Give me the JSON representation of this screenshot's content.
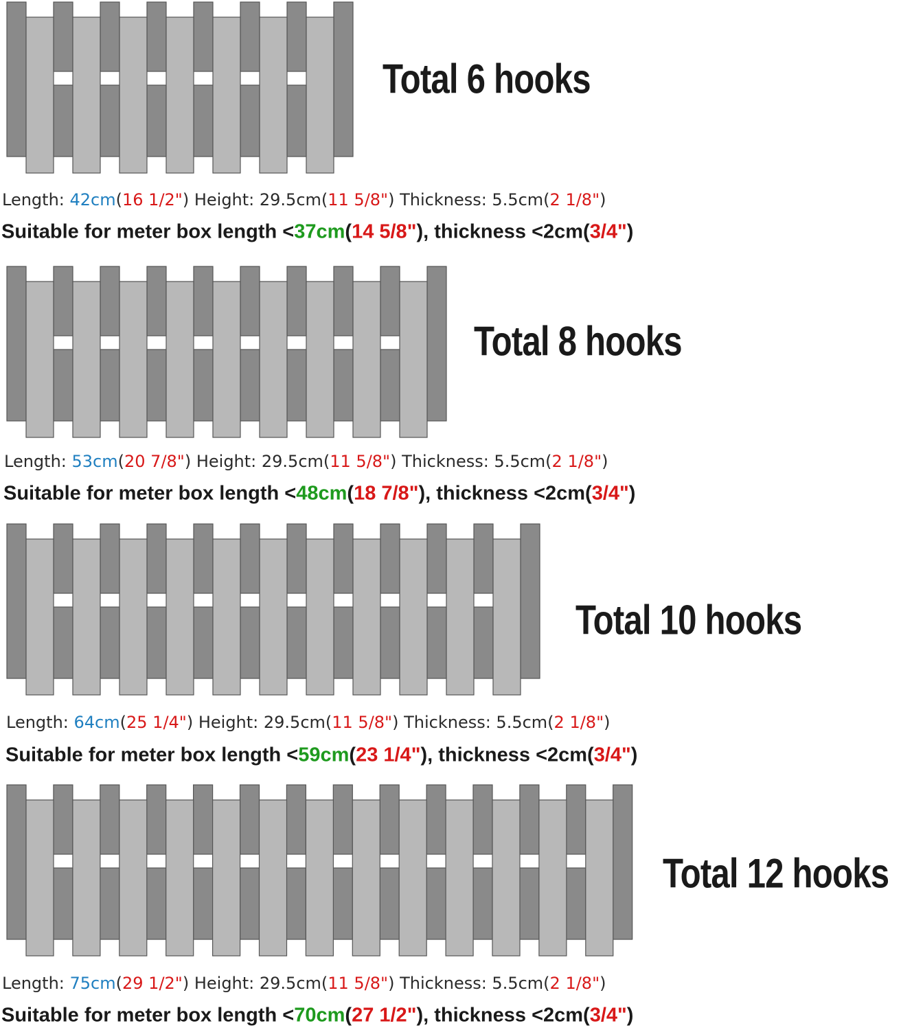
{
  "sections": [
    {
      "title": "Total 6 hooks",
      "spec": [
        "Length: ",
        "42cm",
        "(",
        "16 1/2\"",
        ") Height: 29.5cm(",
        "11 5/8\"",
        ") Thickness: 5.5cm(",
        "2 1/8\"",
        ")"
      ],
      "fit": [
        "Suitable for meter box length <",
        "37cm",
        "(",
        "14 5/8\"",
        "), thickness <2cm(",
        "3/4\"",
        ")"
      ]
    },
    {
      "title": "Total 8 hooks",
      "spec": [
        "Length: ",
        "53cm",
        "(",
        "20 7/8\"",
        ") Height: 29.5cm(",
        "11 5/8\"",
        ") Thickness: 5.5cm(",
        "2 1/8\"",
        ")"
      ],
      "fit": [
        "Suitable for meter box length <",
        "48cm",
        "(",
        "18 7/8\"",
        "), thickness <2cm(",
        "3/4\"",
        ")"
      ]
    },
    {
      "title": "Total 10 hooks",
      "spec": [
        "Length: ",
        "64cm",
        "(",
        "25 1/4\"",
        ") Height: 29.5cm(",
        "11 5/8\"",
        ") Thickness: 5.5cm(",
        "2 1/8\"",
        ")"
      ],
      "fit": [
        "Suitable for meter box length <",
        "59cm",
        "(",
        "23 1/4\"",
        "), thickness <2cm(",
        "3/4\"",
        ")"
      ]
    },
    {
      "title": "Total 12 hooks",
      "spec": [
        "Length: ",
        "75cm",
        "(",
        "29 1/2\"",
        ") Height: 29.5cm(",
        "11 5/8\"",
        ") Thickness: 5.5cm(",
        "2 1/8\"",
        ")"
      ],
      "fit": [
        "Suitable for meter box length <",
        "70cm",
        "(",
        "27 1/2\"",
        "), thickness <2cm(",
        "3/4\"",
        ")"
      ]
    }
  ]
}
